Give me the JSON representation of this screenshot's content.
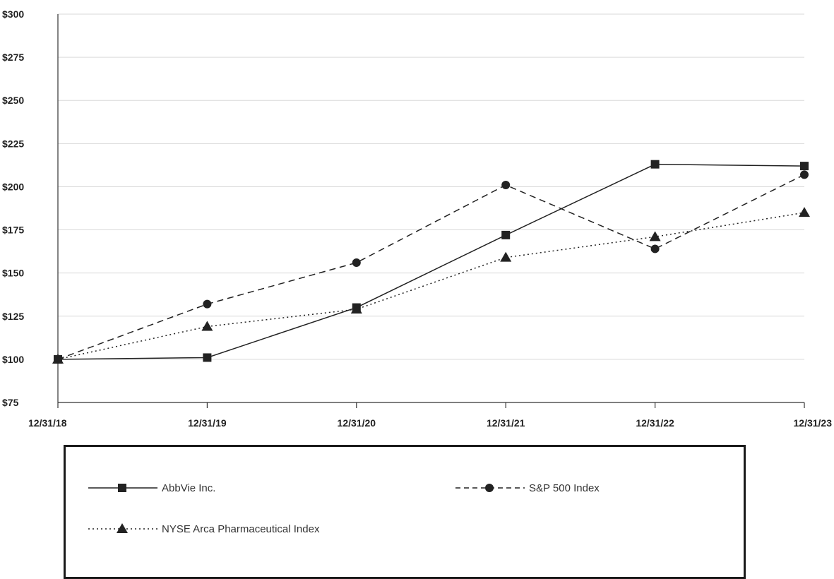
{
  "chart_data": {
    "type": "line",
    "title": "",
    "xlabel": "",
    "ylabel": "",
    "categories": [
      "12/31/18",
      "12/31/19",
      "12/31/20",
      "12/31/21",
      "12/31/22",
      "12/31/23"
    ],
    "ylim": [
      75,
      300
    ],
    "yticks": [
      75,
      100,
      125,
      150,
      175,
      200,
      225,
      250,
      275,
      300
    ],
    "ytick_labels": [
      "$75",
      "$100",
      "$125",
      "$150",
      "$175",
      "$200",
      "$225",
      "$250",
      "$275",
      "$300"
    ],
    "grid": true,
    "legend": "bottom",
    "series": [
      {
        "name": "AbbVie Inc.",
        "values": [
          100,
          101,
          130,
          172,
          213,
          212
        ],
        "marker": "square",
        "dash": "solid",
        "color": "#222222"
      },
      {
        "name": "S&P 500 Index",
        "values": [
          100,
          132,
          156,
          201,
          164,
          207
        ],
        "marker": "circle",
        "dash": "dashed",
        "color": "#222222"
      },
      {
        "name": "NYSE Arca Pharmaceutical Index",
        "values": [
          100,
          119,
          129,
          159,
          171,
          185
        ],
        "marker": "triangle",
        "dash": "dotted",
        "color": "#222222"
      }
    ]
  }
}
